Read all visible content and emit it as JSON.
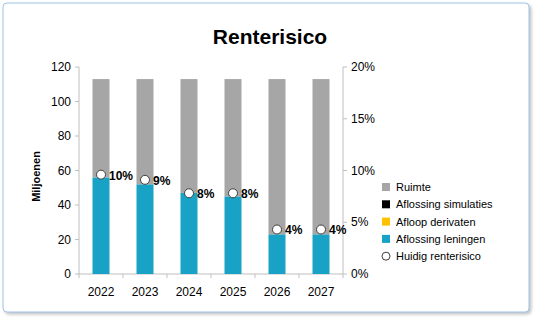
{
  "chart_data": {
    "type": "bar",
    "title": "Renterisico",
    "y_label": "Miljoenen",
    "categories": [
      "2022",
      "2023",
      "2024",
      "2025",
      "2026",
      "2027"
    ],
    "stacked": true,
    "grid": false,
    "legend": "right",
    "ylim": [
      0,
      120
    ],
    "yticks": [
      0,
      20,
      40,
      60,
      80,
      100,
      120
    ],
    "y2lim": [
      0,
      20
    ],
    "y2ticks": [
      {
        "value": 0,
        "label": "0%"
      },
      {
        "value": 5,
        "label": "5%"
      },
      {
        "value": 10,
        "label": "10%"
      },
      {
        "value": 15,
        "label": "15%"
      },
      {
        "value": 20,
        "label": "20%"
      }
    ],
    "series": [
      {
        "name": "Aflossing leningen",
        "type": "bar",
        "color": "#18a3c6",
        "values": [
          56,
          52,
          47,
          45,
          23,
          23
        ]
      },
      {
        "name": "Afloop derivaten",
        "type": "bar",
        "color": "#ffc000",
        "values": [
          0,
          0,
          0,
          0,
          0,
          0
        ]
      },
      {
        "name": "Aflossing simulaties",
        "type": "bar",
        "color": "#000000",
        "values": [
          0,
          0,
          0,
          0,
          0,
          0
        ]
      },
      {
        "name": "Ruimte",
        "type": "bar",
        "color": "#a6a6a6",
        "values": [
          57,
          61,
          66,
          68,
          90,
          90
        ]
      },
      {
        "name": "Huidig renterisico",
        "type": "line",
        "axis": "y2",
        "color": "#ffffff",
        "marker": "circle",
        "line_style": "none",
        "data_labels": true,
        "values": [
          9.6,
          9.1,
          7.8,
          7.8,
          4.3,
          4.3
        ],
        "value_labels": [
          "10%",
          "9%",
          "8%",
          "8%",
          "4%",
          "4%"
        ]
      }
    ]
  }
}
